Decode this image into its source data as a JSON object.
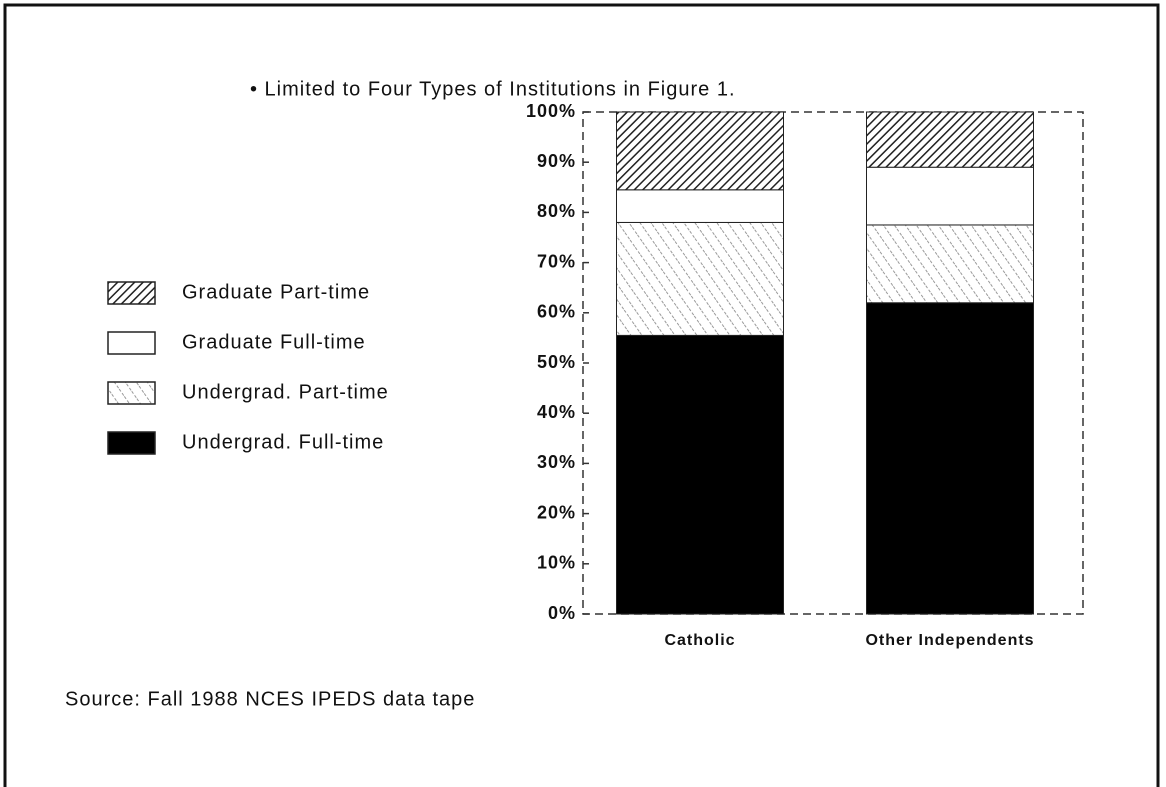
{
  "chart_data": {
    "type": "stacked_bar",
    "title": "• Limited to Four Types of Institutions in Figure 1.",
    "source": "Source: Fall 1988 NCES IPEDS data tape",
    "categories": [
      "Catholic",
      "Other Independents"
    ],
    "series": [
      {
        "name": "Undergrad. Full-time",
        "color": "#000000",
        "values": [
          55.5,
          62
        ]
      },
      {
        "name": "Undergrad. Part-time",
        "color": "#999999",
        "values": [
          22.5,
          15.5
        ]
      },
      {
        "name": "Graduate Full-time",
        "color": "#ffffff",
        "values": [
          6.5,
          11.5
        ]
      },
      {
        "name": "Graduate Part-time",
        "color": "#222222",
        "values": [
          15.5,
          11
        ]
      }
    ],
    "ylim": [
      0,
      100
    ],
    "yticks": [
      {
        "value": 0,
        "label": "0%"
      },
      {
        "value": 10,
        "label": "10%"
      },
      {
        "value": 20,
        "label": "20%"
      },
      {
        "value": 30,
        "label": "30%"
      },
      {
        "value": 40,
        "label": "40%"
      },
      {
        "value": 50,
        "label": "50%"
      },
      {
        "value": 60,
        "label": "60%"
      },
      {
        "value": 70,
        "label": "70%"
      },
      {
        "value": 80,
        "label": "80%"
      },
      {
        "value": 90,
        "label": "90%"
      },
      {
        "value": 100,
        "label": "100%"
      }
    ],
    "legend": "left"
  }
}
